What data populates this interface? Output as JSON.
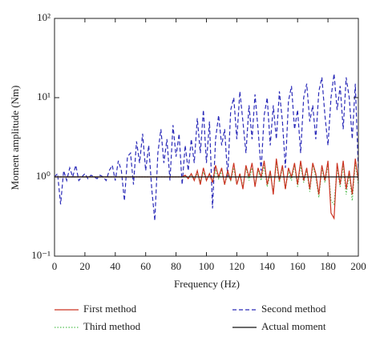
{
  "chart_data": {
    "type": "line",
    "xlabel": "Frequency (Hz)",
    "ylabel": "Moment amplitude (Nm)",
    "xlim": [
      0,
      200
    ],
    "xticks": [
      0,
      20,
      40,
      60,
      80,
      100,
      120,
      140,
      160,
      180,
      200
    ],
    "ylim": [
      0.1,
      100
    ],
    "yticks": [
      {
        "value": 0.1,
        "label": "10⁻¹"
      },
      {
        "value": 1,
        "label": "10⁰"
      },
      {
        "value": 10,
        "label": "10¹"
      },
      {
        "value": 100,
        "label": "10²"
      }
    ],
    "log_y": true,
    "grid": false,
    "legend": "bottom",
    "x": [
      0,
      2,
      4,
      6,
      8,
      10,
      12,
      14,
      16,
      18,
      20,
      22,
      24,
      26,
      28,
      30,
      32,
      34,
      36,
      38,
      40,
      42,
      44,
      46,
      48,
      50,
      52,
      54,
      56,
      58,
      60,
      62,
      64,
      66,
      68,
      70,
      72,
      74,
      76,
      78,
      80,
      82,
      84,
      86,
      88,
      90,
      92,
      94,
      96,
      98,
      100,
      102,
      104,
      106,
      108,
      110,
      112,
      114,
      116,
      118,
      120,
      122,
      124,
      126,
      128,
      130,
      132,
      134,
      136,
      138,
      140,
      142,
      144,
      146,
      148,
      150,
      152,
      154,
      156,
      158,
      160,
      162,
      164,
      166,
      168,
      170,
      172,
      174,
      176,
      178,
      180,
      182,
      184,
      186,
      188,
      190,
      192,
      194,
      196,
      198,
      200
    ],
    "series": [
      {
        "name": "Second method",
        "color": "#2a2ab8",
        "style": "dashed",
        "values": [
          1.0,
          1.1,
          0.45,
          1.2,
          0.9,
          1.3,
          1.0,
          1.4,
          0.9,
          1.0,
          1.1,
          0.95,
          1.05,
          1.0,
          0.95,
          1.05,
          1.0,
          0.9,
          1.2,
          1.4,
          0.9,
          1.6,
          1.2,
          0.5,
          1.8,
          2.0,
          0.8,
          2.8,
          1.5,
          3.5,
          1.2,
          2.5,
          0.7,
          0.28,
          2.0,
          4.0,
          1.5,
          3.0,
          0.9,
          4.5,
          1.8,
          3.5,
          0.8,
          2.5,
          1.2,
          3.0,
          1.5,
          5.5,
          2.0,
          7.0,
          1.5,
          5.0,
          0.4,
          3.0,
          6.0,
          2.5,
          4.0,
          1.0,
          7.0,
          10.0,
          3.0,
          12.0,
          5.0,
          2.0,
          8.0,
          3.0,
          11.0,
          4.0,
          1.2,
          6.0,
          10.0,
          2.5,
          8.0,
          3.0,
          12.0,
          5.0,
          1.3,
          9.0,
          14.0,
          4.0,
          7.0,
          2.0,
          10.0,
          15.0,
          5.0,
          8.0,
          3.0,
          12.0,
          18.0,
          6.0,
          2.5,
          10.0,
          20.0,
          7.0,
          14.0,
          4.0,
          18.0,
          10.0,
          3.0,
          15.0,
          1.2
        ]
      },
      {
        "name": "Third method",
        "color": "#55c055",
        "style": "dotted",
        "values": [
          1.0,
          1.0,
          1.0,
          1.0,
          1.0,
          1.0,
          1.0,
          1.0,
          1.0,
          1.0,
          1.0,
          1.0,
          1.0,
          1.0,
          1.0,
          1.0,
          1.0,
          1.0,
          1.0,
          1.0,
          1.0,
          1.0,
          1.0,
          1.0,
          1.0,
          1.0,
          1.0,
          1.0,
          1.0,
          1.0,
          1.0,
          1.0,
          1.0,
          1.0,
          1.0,
          1.0,
          1.0,
          1.0,
          1.0,
          1.0,
          1.0,
          1.0,
          1.0,
          1.0,
          1.0,
          1.05,
          0.95,
          1.1,
          0.9,
          1.15,
          0.9,
          1.1,
          0.85,
          1.2,
          0.95,
          1.2,
          0.8,
          1.1,
          0.9,
          1.3,
          0.8,
          1.1,
          0.75,
          1.3,
          0.9,
          1.3,
          0.8,
          1.2,
          0.9,
          1.4,
          0.75,
          1.1,
          0.65,
          1.5,
          0.85,
          1.3,
          0.7,
          1.2,
          0.9,
          1.4,
          0.75,
          1.4,
          0.85,
          1.2,
          0.65,
          1.4,
          1.0,
          0.55,
          1.3,
          0.85,
          1.4,
          0.5,
          0.45,
          1.3,
          0.75,
          1.4,
          0.6,
          1.1,
          0.5,
          1.5,
          0.8
        ]
      },
      {
        "name": "First method",
        "color": "#cc3322",
        "style": "solid",
        "values": [
          1.0,
          1.0,
          1.0,
          1.0,
          1.0,
          1.0,
          1.0,
          1.0,
          1.0,
          1.0,
          1.0,
          1.0,
          1.0,
          1.0,
          1.0,
          1.0,
          1.0,
          1.0,
          1.0,
          1.0,
          1.0,
          1.0,
          1.0,
          1.0,
          1.0,
          1.0,
          1.0,
          1.0,
          1.0,
          1.0,
          1.0,
          1.0,
          1.0,
          1.0,
          1.0,
          1.0,
          1.0,
          1.0,
          1.0,
          1.0,
          1.0,
          1.0,
          1.0,
          1.05,
          0.95,
          1.1,
          0.9,
          1.2,
          0.8,
          1.3,
          0.9,
          1.1,
          0.85,
          1.4,
          1.0,
          1.3,
          0.8,
          1.2,
          0.9,
          1.5,
          0.8,
          1.1,
          0.7,
          1.4,
          1.0,
          1.5,
          0.75,
          1.3,
          1.0,
          1.6,
          0.8,
          1.2,
          0.6,
          1.7,
          0.9,
          1.4,
          0.7,
          1.3,
          1.0,
          1.5,
          0.8,
          1.6,
          0.9,
          1.3,
          0.7,
          1.5,
          1.1,
          0.6,
          1.4,
          0.9,
          1.6,
          0.35,
          0.3,
          1.5,
          0.8,
          1.6,
          0.7,
          1.2,
          0.6,
          1.7,
          0.9
        ]
      },
      {
        "name": "Actual moment",
        "color": "#111111",
        "style": "solid",
        "x": [
          0,
          200
        ],
        "values": [
          1,
          1
        ]
      }
    ],
    "legend_order": [
      "First method",
      "Second method",
      "Third method",
      "Actual moment"
    ]
  }
}
